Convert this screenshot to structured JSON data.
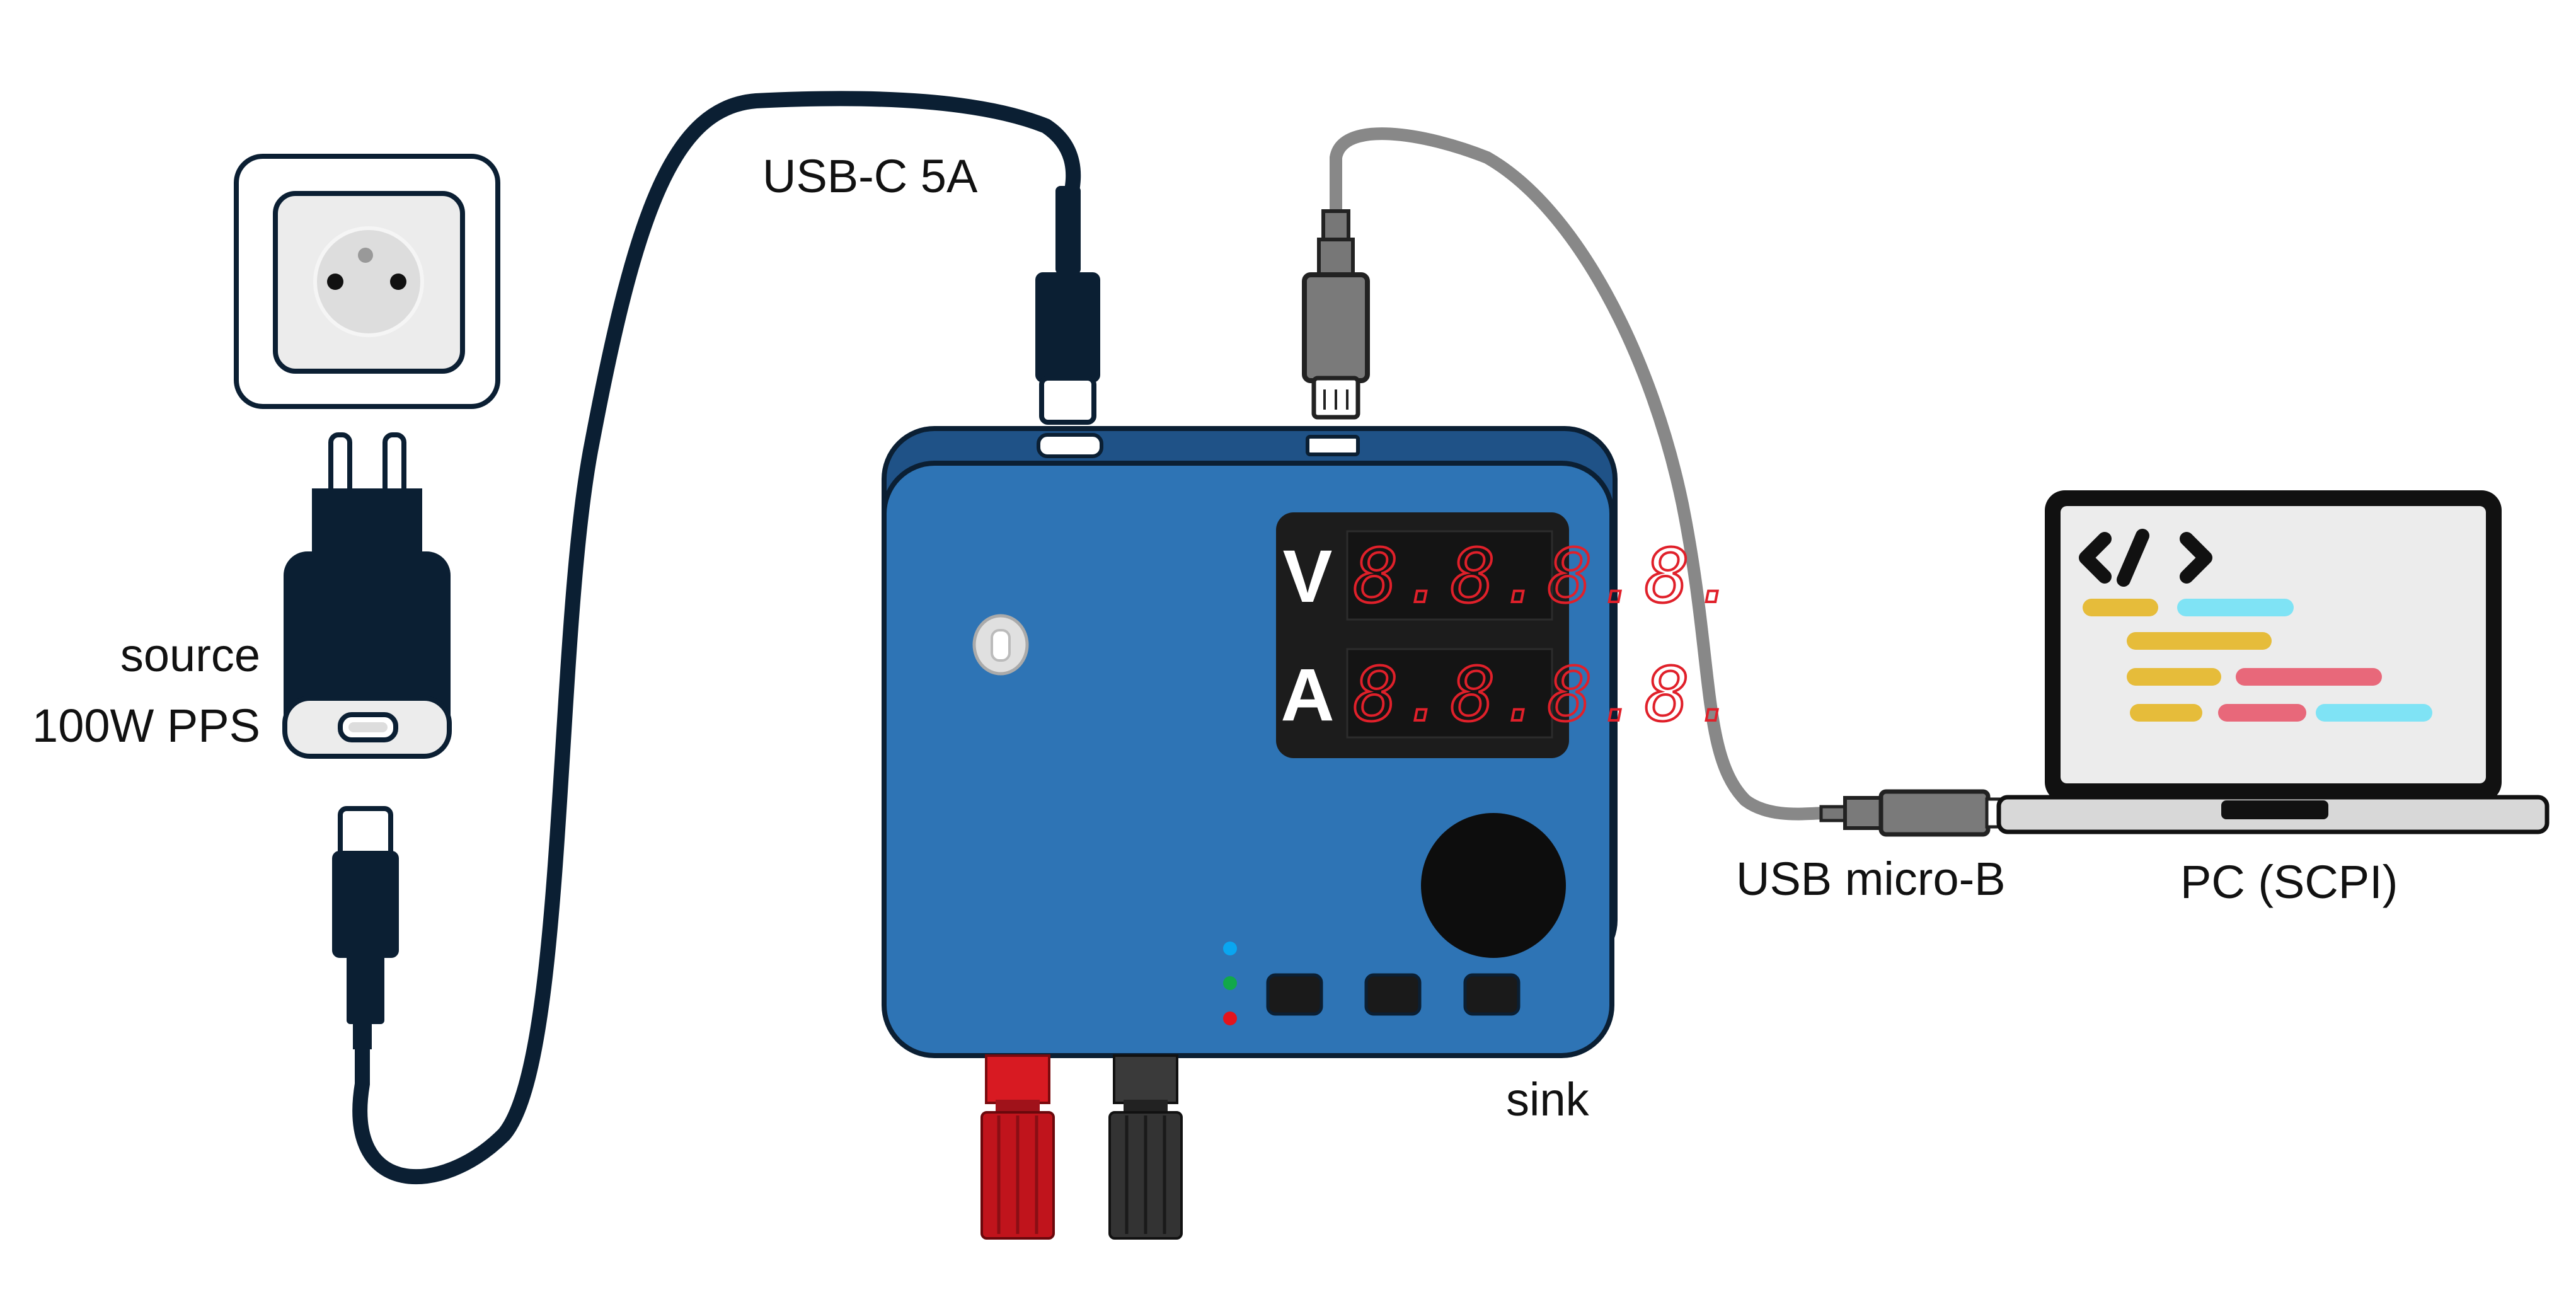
{
  "labels": {
    "cable_usb_c": "USB-C 5A",
    "charger_line1": "source",
    "charger_line2": "100W PPS",
    "cable_micro_b": "USB micro-B",
    "pc": "PC (SCPI)",
    "sink": "sink"
  },
  "display": {
    "voltage_letter": "V",
    "current_letter": "A",
    "voltage_readout": "8.8.8.8.",
    "current_readout": "8.8.8.8."
  },
  "icons": {
    "outlet": "wall-socket-icon",
    "charger": "usb-charger-icon",
    "device": "usb-pd-sink-device",
    "laptop": "laptop-code-icon",
    "knob": "rotary-knob-icon"
  },
  "colors": {
    "device_body": "#2e74b5",
    "device_back": "#1f5287",
    "cable_usb_c": "#0b1f33",
    "cable_micro_b": "#888888",
    "display_bg": "#1c1c1c",
    "segment": "#e0202a",
    "terminal_pos": "#c0141c",
    "terminal_neg": "#333333",
    "led_blue": "#0aa6f0",
    "led_green": "#12a84a",
    "led_red": "#e3141c",
    "code_yellow": "#e6bc3a",
    "code_cyan": "#7fe3f5",
    "code_pink": "#e8687a"
  }
}
